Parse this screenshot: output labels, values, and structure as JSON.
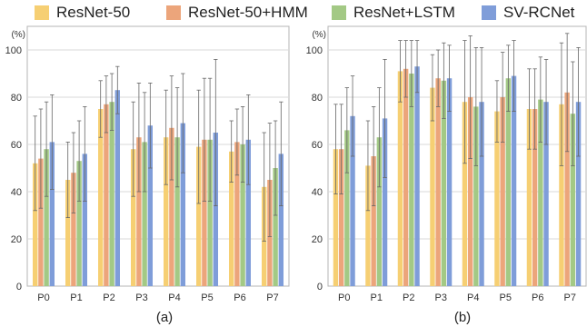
{
  "legend": [
    {
      "name": "ResNet-50",
      "color": "#f6cf73"
    },
    {
      "name": "ResNet-50+HMM",
      "color": "#eca57b"
    },
    {
      "name": "ResNet+LSTM",
      "color": "#a3c985"
    },
    {
      "name": "SV-RCNet",
      "color": "#7f9dd9"
    }
  ],
  "chart_data": [
    {
      "type": "bar",
      "panel_label": "(a)",
      "ylabel": "(%)",
      "ylim": [
        0,
        110
      ],
      "yticks": [
        0,
        20,
        40,
        60,
        80,
        100
      ],
      "grid": true,
      "categories": [
        "P0",
        "P1",
        "P2",
        "P3",
        "P4",
        "P5",
        "P6",
        "P7"
      ],
      "series": [
        {
          "name": "ResNet-50",
          "color": "#f6cf73",
          "values": [
            52,
            45,
            75,
            58,
            63,
            59,
            57,
            42
          ],
          "errors": [
            20,
            16,
            12,
            20,
            20,
            24,
            13,
            23
          ]
        },
        {
          "name": "ResNet-50+HMM",
          "color": "#eca57b",
          "values": [
            54,
            48,
            77,
            63,
            67,
            62,
            61,
            45
          ],
          "errors": [
            21,
            17,
            12,
            23,
            22,
            26,
            14,
            24
          ]
        },
        {
          "name": "ResNet+LSTM",
          "color": "#a3c985",
          "values": [
            58,
            53,
            78,
            61,
            63,
            62,
            60,
            50
          ],
          "errors": [
            20,
            17,
            12,
            21,
            21,
            26,
            16,
            20
          ]
        },
        {
          "name": "SV-RCNet",
          "color": "#7f9dd9",
          "values": [
            61,
            56,
            83,
            68,
            69,
            65,
            62,
            56
          ],
          "errors": [
            20,
            20,
            10,
            18,
            21,
            31,
            19,
            22
          ]
        }
      ]
    },
    {
      "type": "bar",
      "panel_label": "(b)",
      "ylabel": "(%)",
      "ylim": [
        0,
        110
      ],
      "yticks": [
        0,
        20,
        40,
        60,
        80,
        100
      ],
      "grid": true,
      "categories": [
        "P0",
        "P1",
        "P2",
        "P3",
        "P4",
        "P5",
        "P6",
        "P7"
      ],
      "series": [
        {
          "name": "ResNet-50",
          "color": "#f6cf73",
          "values": [
            58,
            51,
            91,
            84,
            78,
            74,
            75,
            77
          ],
          "errors": [
            19,
            19,
            13,
            14,
            26,
            13,
            17,
            26
          ]
        },
        {
          "name": "ResNet-50+HMM",
          "color": "#eca57b",
          "values": [
            58,
            55,
            92,
            88,
            80,
            80,
            75,
            82
          ],
          "errors": [
            19,
            21,
            12,
            12,
            26,
            19,
            17,
            25
          ]
        },
        {
          "name": "ResNet+LSTM",
          "color": "#a3c985",
          "values": [
            66,
            63,
            90,
            87,
            76,
            88,
            79,
            73
          ],
          "errors": [
            18,
            21,
            14,
            16,
            25,
            14,
            18,
            22
          ]
        },
        {
          "name": "SV-RCNet",
          "color": "#7f9dd9",
          "values": [
            72,
            71,
            93,
            88,
            78,
            89,
            78,
            78
          ],
          "errors": [
            17,
            25,
            11,
            14,
            23,
            15,
            18,
            23
          ]
        }
      ]
    }
  ]
}
